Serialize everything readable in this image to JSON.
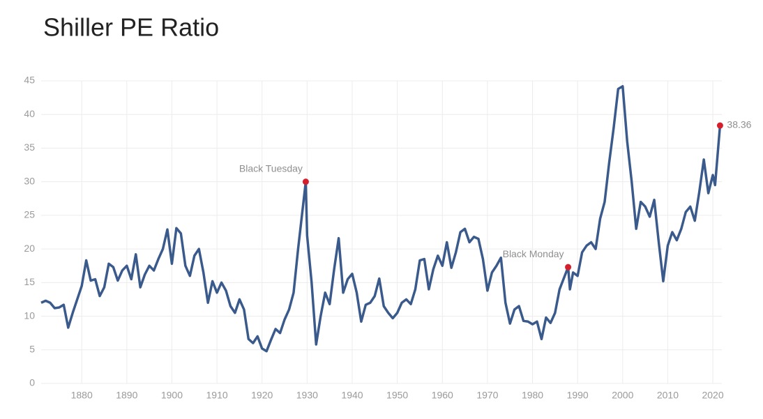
{
  "chart_data": {
    "type": "line",
    "title": "Shiller PE Ratio",
    "x": [
      1871,
      1872,
      1873,
      1874,
      1875,
      1876,
      1877,
      1878,
      1879,
      1880,
      1881,
      1882,
      1883,
      1884,
      1885,
      1886,
      1887,
      1888,
      1889,
      1890,
      1891,
      1892,
      1893,
      1894,
      1895,
      1896,
      1897,
      1898,
      1899,
      1900,
      1901,
      1902,
      1903,
      1904,
      1905,
      1906,
      1907,
      1908,
      1909,
      1910,
      1911,
      1912,
      1913,
      1914,
      1915,
      1916,
      1917,
      1918,
      1919,
      1920,
      1921,
      1922,
      1923,
      1924,
      1925,
      1926,
      1927,
      1928,
      1929.7,
      1930,
      1931,
      1932,
      1933,
      1934,
      1935,
      1936,
      1937,
      1938,
      1939,
      1940,
      1941,
      1942,
      1943,
      1944,
      1945,
      1946,
      1947,
      1948,
      1949,
      1950,
      1951,
      1952,
      1953,
      1954,
      1955,
      1956,
      1957,
      1958,
      1959,
      1960,
      1961,
      1962,
      1963,
      1964,
      1965,
      1966,
      1967,
      1968,
      1969,
      1970,
      1971,
      1972,
      1973,
      1974,
      1975,
      1976,
      1977,
      1978,
      1979,
      1980,
      1981,
      1982,
      1983,
      1984,
      1985,
      1986,
      1987.9,
      1988.3,
      1989,
      1990,
      1991,
      1992,
      1993,
      1994,
      1995,
      1996,
      1997,
      1998,
      1999,
      2000,
      2001,
      2002,
      2003,
      2004,
      2005,
      2006,
      2007,
      2008,
      2009,
      2010,
      2011,
      2012,
      2013,
      2014,
      2015,
      2016,
      2017,
      2018,
      2019,
      2020,
      2020.5,
      2021.6
    ],
    "series": [
      {
        "name": "Shiller PE",
        "color": "#3b5a8c",
        "values": [
          12.0,
          12.3,
          12.0,
          11.2,
          11.3,
          11.7,
          8.3,
          10.5,
          12.5,
          14.5,
          18.3,
          15.3,
          15.5,
          13.0,
          14.3,
          17.8,
          17.3,
          15.3,
          16.8,
          17.5,
          15.5,
          19.2,
          14.3,
          16.2,
          17.5,
          16.8,
          18.5,
          20.0,
          22.9,
          17.8,
          23.1,
          22.3,
          17.5,
          16.0,
          19.0,
          20.0,
          16.5,
          12.0,
          15.2,
          13.5,
          15.0,
          13.8,
          11.5,
          10.5,
          12.5,
          11.0,
          6.6,
          6.0,
          7.0,
          5.2,
          4.8,
          6.5,
          8.1,
          7.5,
          9.5,
          11.0,
          13.5,
          20.0,
          30.0,
          22.0,
          15.0,
          5.8,
          10.0,
          13.5,
          11.8,
          17.0,
          21.6,
          13.5,
          15.5,
          16.3,
          13.5,
          9.2,
          11.7,
          12.0,
          13.0,
          15.6,
          11.5,
          10.5,
          9.7,
          10.5,
          12.0,
          12.5,
          11.8,
          14.0,
          18.3,
          18.5,
          14.0,
          17.0,
          19.0,
          17.5,
          21.0,
          17.2,
          19.5,
          22.5,
          23.0,
          21.0,
          21.8,
          21.5,
          18.5,
          13.8,
          16.5,
          17.5,
          18.7,
          12.0,
          8.9,
          11.0,
          11.5,
          9.3,
          9.2,
          8.8,
          9.2,
          6.6,
          9.8,
          9.0,
          10.5,
          14.0,
          17.3,
          14.0,
          16.5,
          16.0,
          19.5,
          20.5,
          21.0,
          20.0,
          24.5,
          27.0,
          32.8,
          38.0,
          43.8,
          44.2,
          36.0,
          30.0,
          23.0,
          27.0,
          26.3,
          24.8,
          27.3,
          21.0,
          15.2,
          20.5,
          22.5,
          21.3,
          23.0,
          25.5,
          26.3,
          24.2,
          28.5,
          33.3,
          28.3,
          31.0,
          29.5,
          38.36
        ]
      }
    ],
    "annotations": [
      {
        "label": "Black Tuesday",
        "x": 1929.7,
        "y": 30.0
      },
      {
        "label": "Black Monday",
        "x": 1987.9,
        "y": 17.3
      },
      {
        "label": "38.36",
        "x": 2021.6,
        "y": 38.36
      }
    ],
    "marker_color": "#d61f2c",
    "xlim": [
      1871,
      2022
    ],
    "xticks": [
      1880,
      1890,
      1900,
      1910,
      1920,
      1930,
      1940,
      1950,
      1960,
      1970,
      1980,
      1990,
      2000,
      2010,
      2020
    ],
    "ylim": [
      0,
      45
    ],
    "yticks": [
      0,
      5,
      10,
      15,
      20,
      25,
      30,
      35,
      40,
      45
    ],
    "grid": true
  }
}
